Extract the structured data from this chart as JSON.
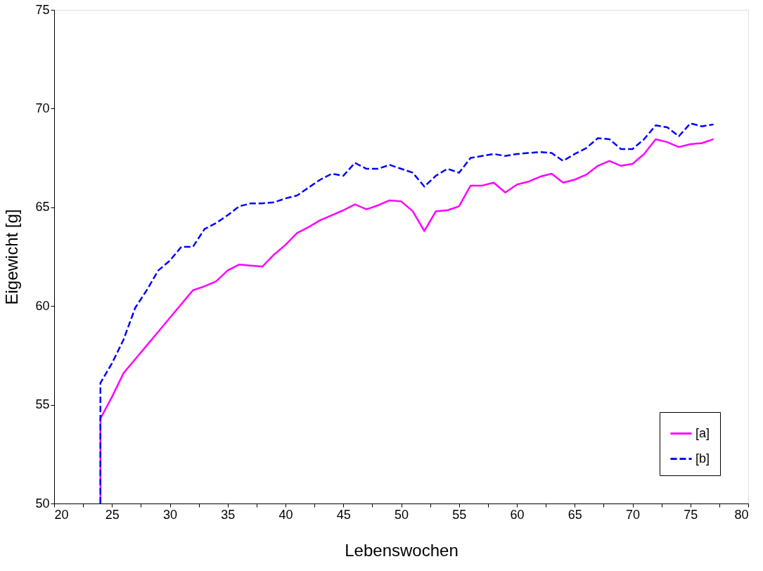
{
  "chart_data": {
    "type": "line",
    "xlabel": "Lebenswochen",
    "ylabel": "Eigewicht [g]",
    "xlim": [
      20,
      80
    ],
    "xticks": [
      20,
      {
        "value": 22.5,
        "label": null
      },
      25,
      {
        "value": 27.5,
        "label": null
      },
      30,
      {
        "value": 32.5,
        "label": null
      },
      35,
      {
        "value": 37.5,
        "label": null
      },
      40,
      {
        "value": 42.5,
        "label": null
      },
      45,
      {
        "value": 47.5,
        "label": null
      },
      50,
      {
        "value": 52.5,
        "label": null
      },
      55,
      {
        "value": 57.5,
        "label": null
      },
      60,
      {
        "value": 62.5,
        "label": null
      },
      65,
      {
        "value": 67.5,
        "label": null
      },
      70,
      {
        "value": 72.5,
        "label": null
      },
      75,
      {
        "value": 77.5,
        "label": null
      },
      80
    ],
    "ylim": [
      50,
      75
    ],
    "yticks": [
      50,
      55,
      60,
      65,
      70,
      75
    ],
    "grid": false,
    "legend": "bottom right",
    "marker": "none",
    "series": [
      {
        "name": "[a]",
        "color": "#ff00ff",
        "line_style": "solid",
        "x": [
          24,
          24,
          25,
          26,
          27,
          28,
          29,
          30,
          31,
          32,
          33,
          34,
          35,
          36,
          37,
          38,
          39,
          40,
          41,
          42,
          43,
          44,
          45,
          46,
          47,
          48,
          49,
          50,
          51,
          52,
          53,
          54,
          55,
          56,
          57,
          58,
          59,
          60,
          61,
          62,
          63,
          64,
          65,
          66,
          67,
          68,
          69,
          70,
          71,
          72,
          73,
          74,
          75,
          76,
          77
        ],
        "values": [
          50,
          54.3,
          55.4,
          56.6,
          57.3,
          58.0,
          58.7,
          59.4,
          60.1,
          60.8,
          61.0,
          61.25,
          61.8,
          62.1,
          62.05,
          62.0,
          62.6,
          63.1,
          63.7,
          64.0,
          64.35,
          64.6,
          64.85,
          65.15,
          64.9,
          65.1,
          65.35,
          65.3,
          64.8,
          63.8,
          64.8,
          64.85,
          65.05,
          66.1,
          66.1,
          66.25,
          65.75,
          66.15,
          66.3,
          66.55,
          66.7,
          66.25,
          66.4,
          66.65,
          67.1,
          67.35,
          67.1,
          67.2,
          67.7,
          68.45,
          68.3,
          68.05,
          68.2,
          68.25,
          68.45
        ]
      },
      {
        "name": "[b]",
        "color": "#0000ff",
        "line_style": "dashed",
        "x": [
          24,
          24,
          25,
          26,
          27,
          28,
          29,
          30,
          31,
          32,
          33,
          34,
          35,
          36,
          37,
          38,
          39,
          40,
          41,
          42,
          43,
          44,
          45,
          46,
          47,
          48,
          49,
          50,
          51,
          52,
          53,
          54,
          55,
          56,
          57,
          58,
          59,
          60,
          61,
          62,
          63,
          64,
          65,
          66,
          67,
          68,
          69,
          70,
          71,
          72,
          73,
          74,
          75,
          76,
          77
        ],
        "values": [
          50,
          56.1,
          57.1,
          58.3,
          59.9,
          60.8,
          61.8,
          62.3,
          63.0,
          63.0,
          63.9,
          64.2,
          64.6,
          65.05,
          65.2,
          65.2,
          65.25,
          65.45,
          65.6,
          66.0,
          66.4,
          66.7,
          66.6,
          67.25,
          66.95,
          66.95,
          67.15,
          66.95,
          66.75,
          66.05,
          66.6,
          66.95,
          66.75,
          67.5,
          67.6,
          67.7,
          67.6,
          67.7,
          67.75,
          67.8,
          67.75,
          67.35,
          67.7,
          68.0,
          68.5,
          68.45,
          67.95,
          67.95,
          68.45,
          69.15,
          69.05,
          68.6,
          69.25,
          69.1,
          69.2
        ]
      }
    ]
  }
}
